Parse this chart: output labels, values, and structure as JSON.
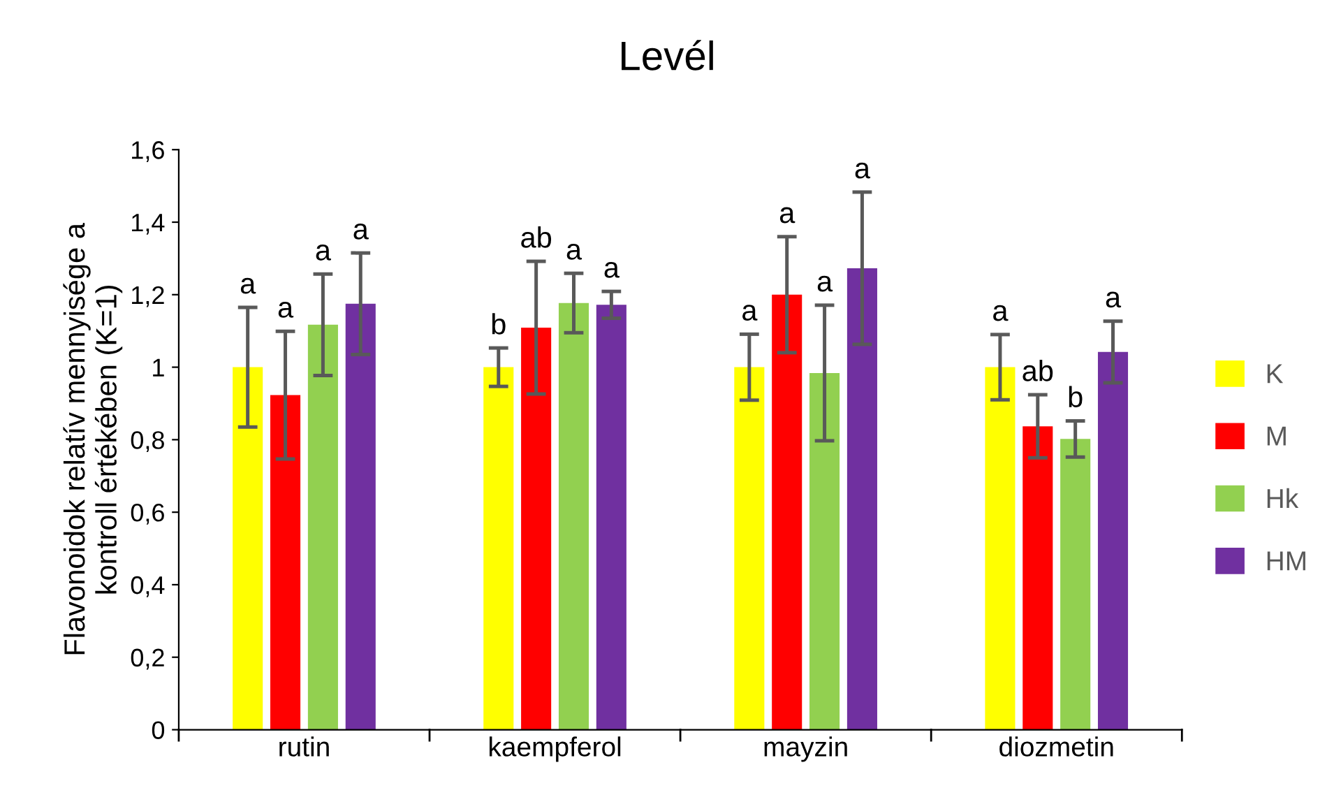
{
  "chart_data": {
    "type": "bar",
    "title": "Levél",
    "ylabel": "Flavonoidok relatív mennyisége a\nkontroll értékében (K=1)",
    "categories": [
      "rutin",
      "kaempferol",
      "mayzin",
      "diozmetin"
    ],
    "series": [
      {
        "name": "K",
        "color": "#ffff00",
        "values": [
          1.0,
          1.0,
          1.0,
          1.0
        ],
        "errors": [
          0.165,
          0.053,
          0.091,
          0.09
        ],
        "value_labels": [
          "a",
          "b",
          "a",
          "a"
        ]
      },
      {
        "name": "M",
        "color": "#ff0000",
        "values": [
          0.923,
          1.109,
          1.2,
          0.837
        ],
        "errors": [
          0.176,
          0.183,
          0.16,
          0.087
        ],
        "value_labels": [
          "a",
          "ab",
          "a",
          "ab"
        ]
      },
      {
        "name": "Hk",
        "color": "#92d050",
        "values": [
          1.117,
          1.177,
          0.984,
          0.802
        ],
        "errors": [
          0.14,
          0.082,
          0.187,
          0.05
        ],
        "value_labels": [
          "a",
          "a",
          "a",
          "b"
        ]
      },
      {
        "name": "HM",
        "color": "#7030a0",
        "values": [
          1.175,
          1.172,
          1.273,
          1.042
        ],
        "errors": [
          0.14,
          0.037,
          0.21,
          0.085
        ],
        "value_labels": [
          "a",
          "a",
          "a",
          "a"
        ]
      }
    ],
    "ylim": [
      0,
      1.6
    ],
    "yticks": [
      0,
      {
        "value": 0.2,
        "label": "0,2"
      },
      {
        "value": 0.4,
        "label": "0,4"
      },
      {
        "value": 0.6,
        "label": "0,6"
      },
      {
        "value": 0.8,
        "label": "0,8"
      },
      1,
      {
        "value": 1.2,
        "label": "1,2"
      },
      {
        "value": 1.4,
        "label": "1,4"
      },
      {
        "value": 1.6,
        "label": "1,6"
      }
    ],
    "grid": false,
    "legend": "right"
  }
}
